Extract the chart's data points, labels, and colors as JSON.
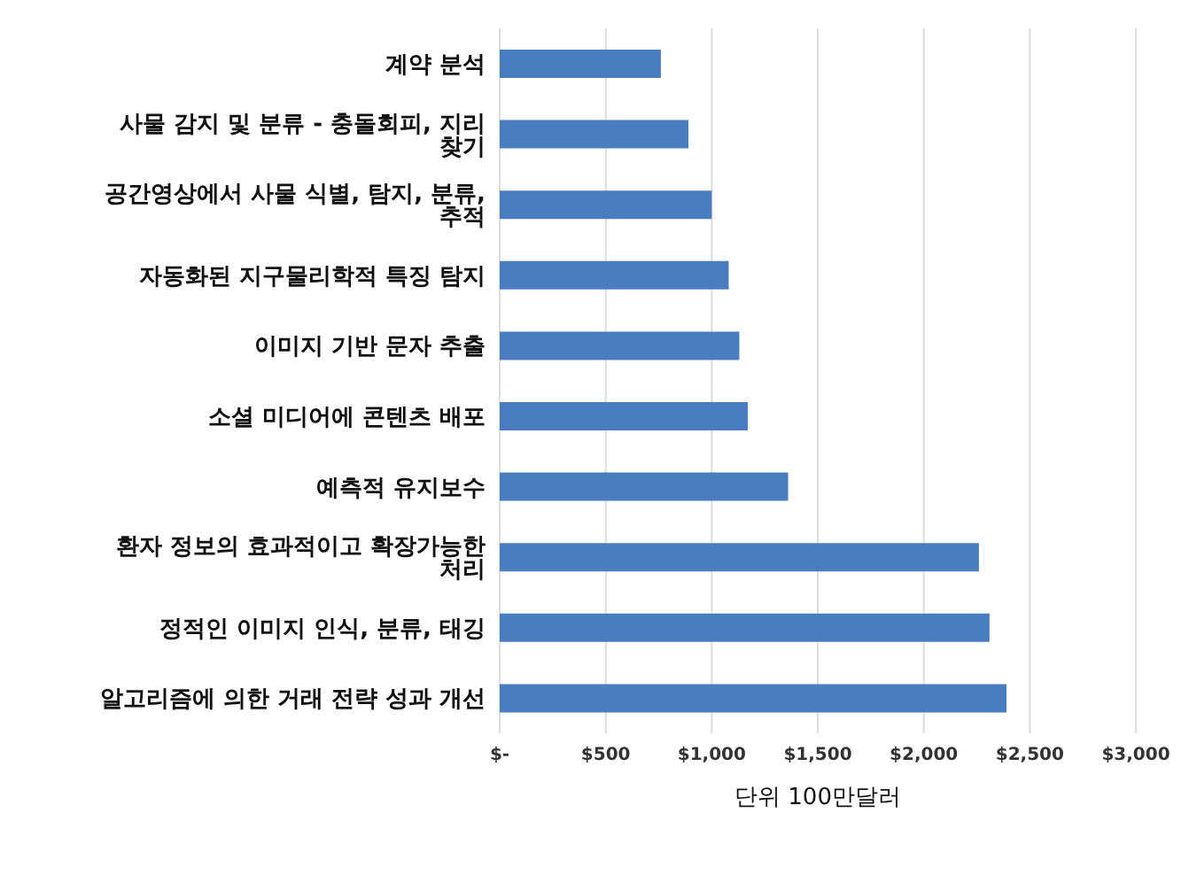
{
  "chart_data": {
    "type": "bar",
    "orientation": "horizontal",
    "xlabel": "단위 100만달러",
    "categories": [
      "계약 분석",
      "사물 감지 및 분류 - 충돌회피, 지리 찾기",
      "공간영상에서 사물 식별, 탐지, 분류, 추적",
      "자동화된 지구물리학적 특징 탐지",
      "이미지 기반 문자 추출",
      "소셜 미디어에 콘텐츠 배포",
      "예측적 유지보수",
      "환자 정보의 효과적이고 확장가능한 처리",
      "정적인 이미지 인식, 분류, 태깅",
      "알고리즘에 의한 거래 전략 성과 개선"
    ],
    "values": [
      760,
      890,
      1000,
      1080,
      1130,
      1170,
      1360,
      2260,
      2310,
      2390
    ],
    "color": "#4a7cc0",
    "xlim": [
      0,
      3000
    ],
    "xticks": [
      {
        "value": 0,
        "label": "$-"
      },
      {
        "value": 500,
        "label": "$500"
      },
      {
        "value": 1000,
        "label": "$1,000"
      },
      {
        "value": 1500,
        "label": "$1,500"
      },
      {
        "value": 2000,
        "label": "$2,000"
      },
      {
        "value": 2500,
        "label": "$2,500"
      },
      {
        "value": 3000,
        "label": "$3,000"
      }
    ],
    "grid": "x"
  }
}
